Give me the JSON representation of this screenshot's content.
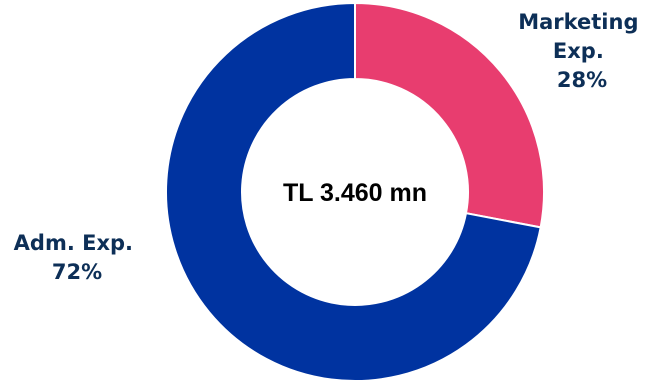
{
  "chart_data": {
    "type": "pie",
    "variant": "donut",
    "center_label": "TL 3.460 mn",
    "slices": [
      {
        "label_lines": [
          "Marketing",
          "Exp.",
          "28%"
        ],
        "value": 28,
        "color": "#e83d6f"
      },
      {
        "label_lines": [
          "Adm. Exp.",
          "72%"
        ],
        "value": 72,
        "color": "#0033a0"
      }
    ],
    "label_color": "#0d2f57"
  }
}
